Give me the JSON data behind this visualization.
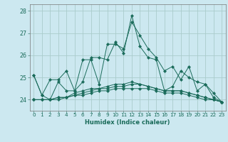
{
  "title": "",
  "xlabel": "Humidex (Indice chaleur)",
  "ylabel": "",
  "bg_color": "#cce8f0",
  "grid_color": "#aacccc",
  "line_color": "#1a6b5a",
  "xlim": [
    -0.5,
    23.5
  ],
  "ylim": [
    23.5,
    28.3
  ],
  "yticks": [
    24,
    25,
    26,
    27,
    28
  ],
  "xticks": [
    0,
    1,
    2,
    3,
    4,
    5,
    6,
    7,
    8,
    9,
    10,
    11,
    12,
    13,
    14,
    15,
    16,
    17,
    18,
    19,
    20,
    21,
    22,
    23
  ],
  "series": [
    [
      25.1,
      24.2,
      24.9,
      24.9,
      25.3,
      24.4,
      24.8,
      25.9,
      25.9,
      25.8,
      26.6,
      26.1,
      27.8,
      26.4,
      25.9,
      25.8,
      24.4,
      24.6,
      25.3,
      25.0,
      24.8,
      24.7,
      24.1,
      23.9
    ],
    [
      25.1,
      24.2,
      24.0,
      24.8,
      24.4,
      24.4,
      25.8,
      25.8,
      24.7,
      26.5,
      26.5,
      26.3,
      27.5,
      26.9,
      26.3,
      25.9,
      25.3,
      25.5,
      24.9,
      25.5,
      24.4,
      24.7,
      24.3,
      23.9
    ],
    [
      24.0,
      24.0,
      24.0,
      24.1,
      24.1,
      24.3,
      24.4,
      24.5,
      24.5,
      24.6,
      24.7,
      24.7,
      24.8,
      24.7,
      24.6,
      24.5,
      24.4,
      24.4,
      24.4,
      24.3,
      24.2,
      24.1,
      24.0,
      23.9
    ],
    [
      24.0,
      24.0,
      24.0,
      24.1,
      24.1,
      24.2,
      24.3,
      24.4,
      24.5,
      24.5,
      24.6,
      24.6,
      24.7,
      24.7,
      24.6,
      24.5,
      24.4,
      24.4,
      24.4,
      24.3,
      24.2,
      24.1,
      24.0,
      23.9
    ],
    [
      24.0,
      24.0,
      24.0,
      24.0,
      24.1,
      24.2,
      24.2,
      24.3,
      24.4,
      24.4,
      24.5,
      24.5,
      24.5,
      24.5,
      24.5,
      24.4,
      24.3,
      24.3,
      24.3,
      24.2,
      24.1,
      24.0,
      24.0,
      23.9
    ]
  ],
  "tick_fontsize": 5.2,
  "xlabel_fontsize": 6.0,
  "marker_size": 2.2
}
